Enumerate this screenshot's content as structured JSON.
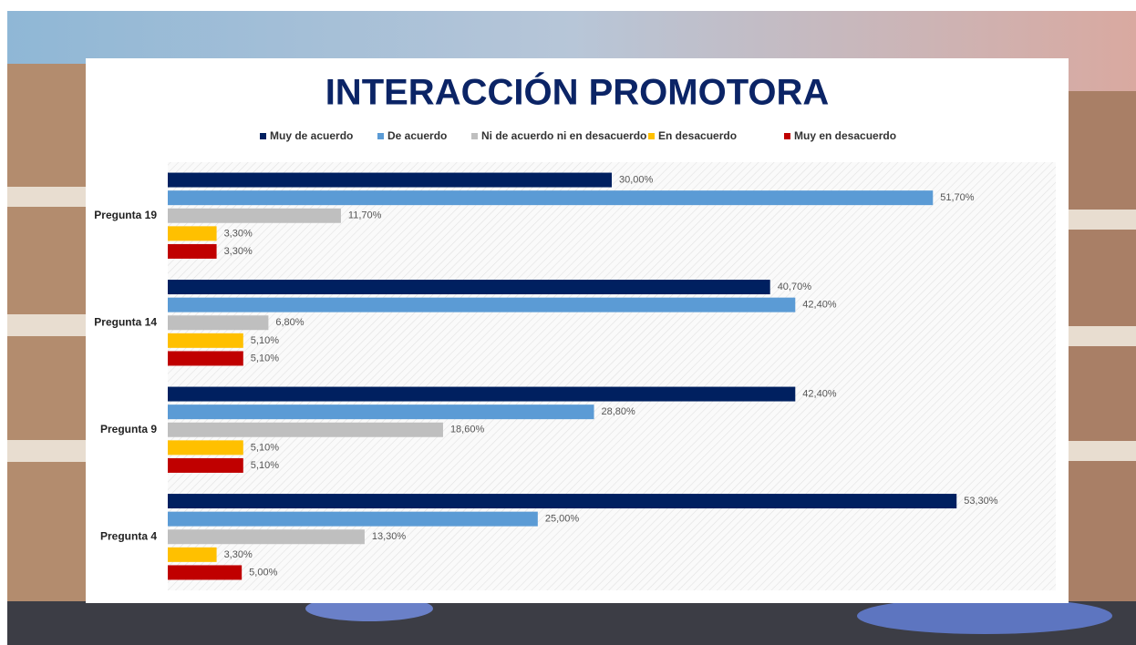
{
  "chart_data": {
    "type": "hbar",
    "title": "INTERACCIÓN PROMOTORA",
    "categories": [
      "Pregunta 19",
      "Pregunta 14",
      "Pregunta 9",
      "Pregunta 4"
    ],
    "xlim": [
      0,
      60
    ],
    "legend": "top",
    "series": [
      {
        "name": "Muy de acuerdo",
        "color": "#002060",
        "values": [
          30.0,
          40.7,
          42.4,
          53.3
        ],
        "value_labels": [
          "30,00%",
          "40,70%",
          "42,40%",
          "53,30%"
        ]
      },
      {
        "name": "De acuerdo",
        "color": "#5b9bd5",
        "values": [
          51.7,
          42.4,
          28.8,
          25.0
        ],
        "value_labels": [
          "51,70%",
          "42,40%",
          "28,80%",
          "25,00%"
        ]
      },
      {
        "name": "Ni de acuerdo ni en desacuerdo",
        "color": "#bfbfbf",
        "values": [
          11.7,
          6.8,
          18.6,
          13.3
        ],
        "value_labels": [
          "11,70%",
          "6,80%",
          "18,60%",
          "13,30%"
        ]
      },
      {
        "name": "En desacuerdo",
        "color": "#ffc000",
        "values": [
          3.3,
          5.1,
          5.1,
          3.3
        ],
        "value_labels": [
          "3,30%",
          "5,10%",
          "5,10%",
          "3,30%"
        ]
      },
      {
        "name": "Muy en desacuerdo",
        "color": "#c00000",
        "values": [
          3.3,
          5.1,
          5.1,
          5.0
        ],
        "value_labels": [
          "3,30%",
          "5,10%",
          "5,10%",
          "5,00%"
        ]
      }
    ]
  }
}
